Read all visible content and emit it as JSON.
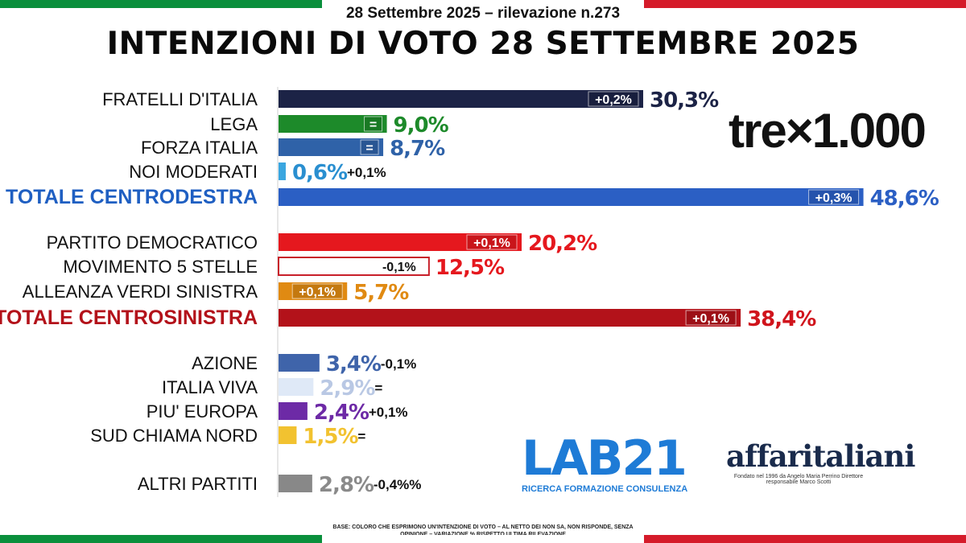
{
  "header": {
    "subtitle": "28 Settembre 2025 – rilevazione n.273",
    "title": "INTENZIONI DI VOTO 28 SETTEMBRE 2025"
  },
  "colors": {
    "flag_green": "#0a8f3c",
    "flag_white": "#ffffff",
    "flag_red": "#d51b2a"
  },
  "logos": {
    "trex": "tre×1.000",
    "lab21": "LAB21",
    "lab21_tagline": "RICERCA FORMAZIONE CONSULENZA",
    "affari": "affaritaliani",
    "affari_tagline": "Fondato nel 1996 da Angelo Maria Perrino Direttore responsabile Marco Scotti"
  },
  "footnote": "BASE: COLORO CHE ESPRIMONO UN'INTENZIONE DI VOTO – AL NETTO DEI NON SA, NON RISPONDE, SENZA OPINIONE – VARIAZIONE % RISPETTO ULTIMA RILEVAZIONE",
  "chart_data": {
    "type": "bar",
    "orientation": "horizontal",
    "title": "INTENZIONI DI VOTO 28 SETTEMBRE 2025",
    "unit": "%",
    "bars": [
      {
        "label": "FRATELLI D'ITALIA",
        "value": 30.3,
        "value_label": "30,3%",
        "change": "+0,2%",
        "change_pos": "inside",
        "color": "#1c2346",
        "value_color": "#1c2346",
        "label_style": "normal"
      },
      {
        "label": "LEGA",
        "value": 9.0,
        "value_label": "9,0%",
        "change": "=",
        "change_pos": "inside",
        "color": "#1d8a2a",
        "value_color": "#1d8a2a",
        "label_style": "normal"
      },
      {
        "label": "FORZA ITALIA",
        "value": 8.7,
        "value_label": "8,7%",
        "change": "=",
        "change_pos": "inside",
        "color": "#2f62a8",
        "value_color": "#2f62a8",
        "label_style": "normal"
      },
      {
        "label": "NOI MODERATI",
        "value": 0.6,
        "value_label": "0,6%",
        "change": "+0,1%",
        "change_pos": "outside",
        "color": "#3aa6e0",
        "value_color": "#2a8fd0",
        "label_style": "normal"
      },
      {
        "label": "TOTALE CENTRODESTRA",
        "value": 48.6,
        "value_label": "48,6%",
        "change": "+0,3%",
        "change_pos": "inside",
        "color": "#2b5fc4",
        "value_color": "#2b5fc4",
        "label_style": "total-right"
      },
      {
        "label": "PARTITO DEMOCRATICO",
        "value": 20.2,
        "value_label": "20,2%",
        "change": "+0,1%",
        "change_pos": "inside",
        "color": "#e5181e",
        "value_color": "#e5181e",
        "label_style": "normal"
      },
      {
        "label": "MOVIMENTO 5 STELLE",
        "value": 12.5,
        "value_label": "12,5%",
        "change": "-0,1%",
        "change_pos": "inside",
        "color": "#ffffff",
        "value_color": "#e5181e",
        "label_style": "normal",
        "outline": "#c8202a"
      },
      {
        "label": "ALLEANZA VERDI SINISTRA",
        "value": 5.7,
        "value_label": "5,7%",
        "change": "+0,1%",
        "change_pos": "inside",
        "color": "#e08a12",
        "value_color": "#e08a12",
        "label_style": "normal"
      },
      {
        "label": "TOTALE CENTROSINISTRA",
        "value": 38.4,
        "value_label": "38,4%",
        "change": "+0,1%",
        "change_pos": "inside",
        "color": "#b3121a",
        "value_color": "#d0141c",
        "label_style": "total-left"
      },
      {
        "label": "AZIONE",
        "value": 3.4,
        "value_label": "3,4%",
        "change": "-0,1%",
        "change_pos": "outside",
        "color": "#3f64aa",
        "value_color": "#3f64aa",
        "label_style": "normal"
      },
      {
        "label": "ITALIA VIVA",
        "value": 2.9,
        "value_label": "2,9%",
        "change": "=",
        "change_pos": "outside",
        "color": "#dfe9f7",
        "value_color": "#b9c8e4",
        "label_style": "normal"
      },
      {
        "label": "PIU' EUROPA",
        "value": 2.4,
        "value_label": "2,4%",
        "change": "+0,1%",
        "change_pos": "outside",
        "color": "#6d2aa6",
        "value_color": "#6d2aa6",
        "label_style": "normal"
      },
      {
        "label": "SUD CHIAMA NORD",
        "value": 1.5,
        "value_label": "1,5%",
        "change": "=",
        "change_pos": "outside",
        "color": "#f2c230",
        "value_color": "#f2c230",
        "label_style": "normal"
      },
      {
        "label": "ALTRI PARTITI",
        "value": 2.8,
        "value_label": "2,8%",
        "change": "-0,4%%",
        "change_pos": "outside",
        "color": "#888888",
        "value_color": "#8a8a8a",
        "label_style": "normal"
      }
    ]
  }
}
